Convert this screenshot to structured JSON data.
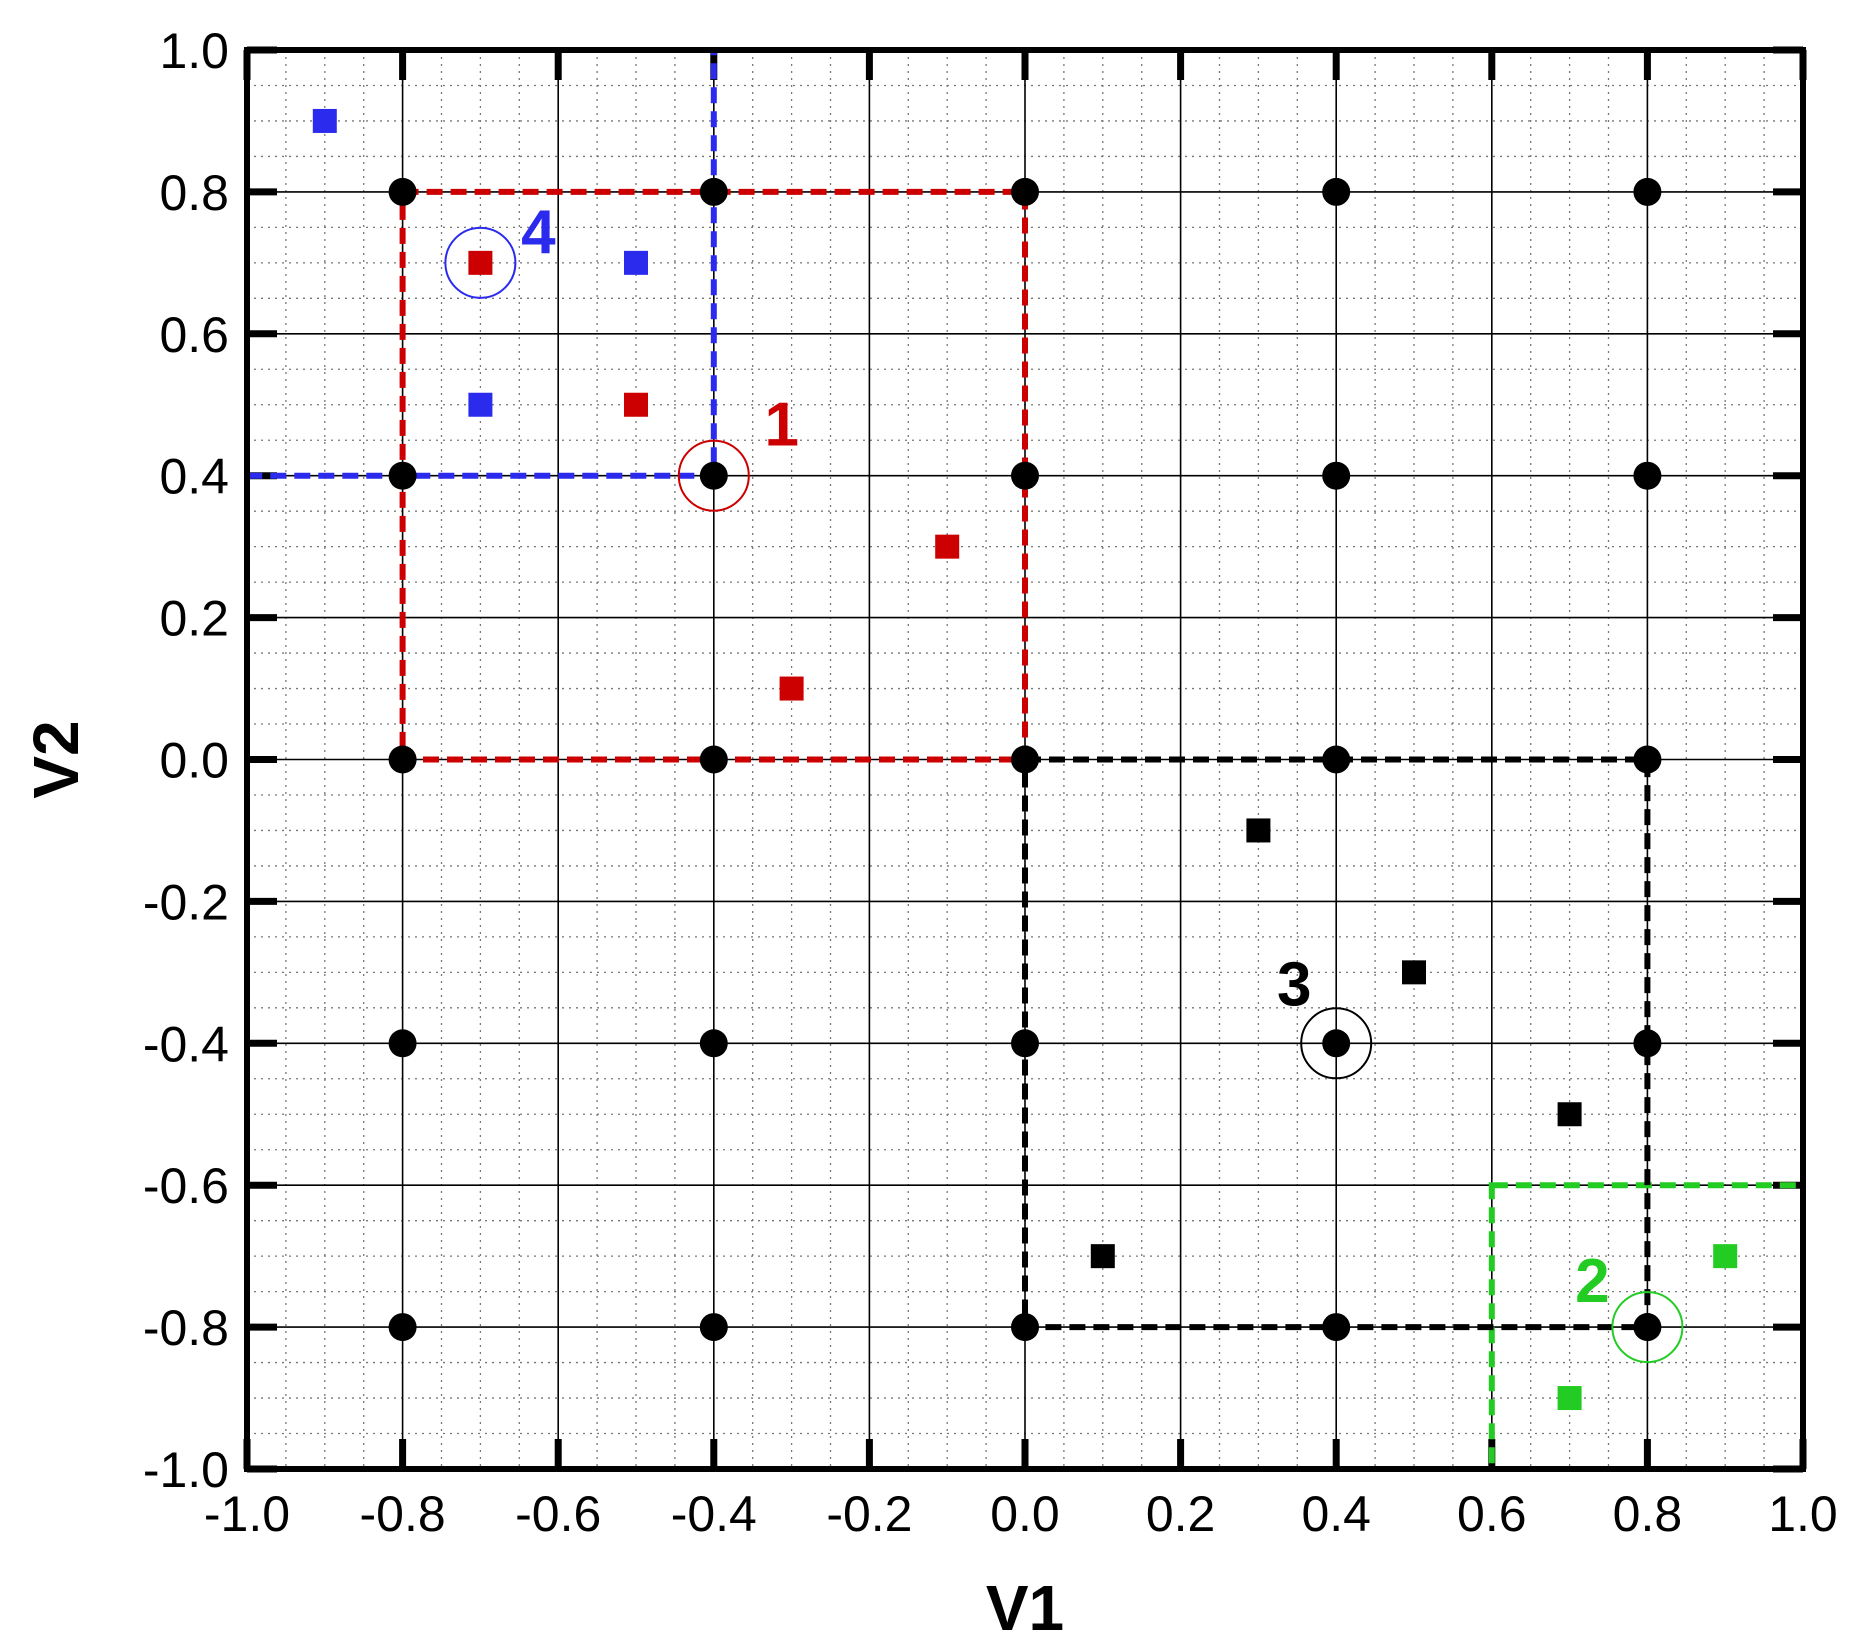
{
  "chart_data": {
    "type": "scatter",
    "title": "",
    "xlabel": "V1",
    "ylabel": "V2",
    "xlim": [
      -1.0,
      1.0
    ],
    "ylim": [
      -1.0,
      1.0
    ],
    "grid": "major solid, minor dotted",
    "x_ticks": [
      -1.0,
      -0.8,
      -0.6,
      -0.4,
      -0.2,
      0.0,
      0.2,
      0.4,
      0.6,
      0.8,
      1.0
    ],
    "y_ticks": [
      -1.0,
      -0.8,
      -0.6,
      -0.4,
      -0.2,
      0.0,
      0.2,
      0.4,
      0.6,
      0.8,
      1.0
    ],
    "x_tick_labels": [
      "-1.0",
      "-0.8",
      "-0.6",
      "-0.4",
      "-0.2",
      "0.0",
      "0.2",
      "0.4",
      "0.6",
      "0.8",
      "1.0"
    ],
    "y_tick_labels": [
      "-1.0",
      "-0.8",
      "-0.6",
      "-0.4",
      "-0.2",
      "0.0",
      "0.2",
      "0.4",
      "0.6",
      "0.8",
      "1.0"
    ],
    "colors": {
      "red": "#cc0000",
      "green": "#22cc22",
      "black": "#000000",
      "blue": "#2b2bee"
    },
    "grid_nodes": {
      "marker": "circle",
      "color": "#000000",
      "points": [
        [
          -0.8,
          0.8
        ],
        [
          -0.4,
          0.8
        ],
        [
          0.0,
          0.8
        ],
        [
          0.4,
          0.8
        ],
        [
          0.8,
          0.8
        ],
        [
          -0.8,
          0.4
        ],
        [
          -0.4,
          0.4
        ],
        [
          0.0,
          0.4
        ],
        [
          0.4,
          0.4
        ],
        [
          0.8,
          0.4
        ],
        [
          -0.8,
          0.0
        ],
        [
          -0.4,
          0.0
        ],
        [
          0.0,
          0.0
        ],
        [
          0.4,
          0.0
        ],
        [
          0.8,
          0.0
        ],
        [
          -0.8,
          -0.4
        ],
        [
          -0.4,
          -0.4
        ],
        [
          0.0,
          -0.4
        ],
        [
          0.4,
          -0.4
        ],
        [
          0.8,
          -0.4
        ],
        [
          -0.8,
          -0.8
        ],
        [
          -0.4,
          -0.8
        ],
        [
          0.0,
          -0.8
        ],
        [
          0.4,
          -0.8
        ],
        [
          0.8,
          -0.8
        ]
      ]
    },
    "series": [
      {
        "label": "1",
        "color": "#cc0000",
        "marker": "square",
        "points": [
          [
            -0.7,
            0.7
          ],
          [
            -0.5,
            0.5
          ],
          [
            -0.1,
            0.3
          ],
          [
            -0.3,
            0.1
          ]
        ],
        "box": [
          -0.8,
          0.0,
          0.0,
          0.8
        ],
        "highlight": [
          -0.4,
          0.4
        ]
      },
      {
        "label": "2",
        "color": "#22cc22",
        "marker": "square",
        "points": [
          [
            0.9,
            -0.7
          ],
          [
            0.7,
            -0.9
          ]
        ],
        "box": [
          0.6,
          -1.0,
          1.0,
          -0.6
        ],
        "highlight": [
          0.8,
          -0.8
        ]
      },
      {
        "label": "3",
        "color": "#000000",
        "marker": "square",
        "points": [
          [
            0.3,
            -0.1
          ],
          [
            0.5,
            -0.3
          ],
          [
            0.7,
            -0.5
          ],
          [
            0.1,
            -0.7
          ]
        ],
        "box": [
          0.0,
          -0.8,
          0.8,
          0.0
        ],
        "highlight": [
          0.4,
          -0.4
        ]
      },
      {
        "label": "4",
        "color": "#2b2bee",
        "marker": "square",
        "points": [
          [
            -0.9,
            0.9
          ],
          [
            -0.5,
            0.7
          ],
          [
            -0.7,
            0.5
          ]
        ],
        "box": [
          -1.0,
          0.4,
          -0.4,
          1.0
        ],
        "highlight": [
          -0.7,
          0.7
        ]
      }
    ]
  }
}
